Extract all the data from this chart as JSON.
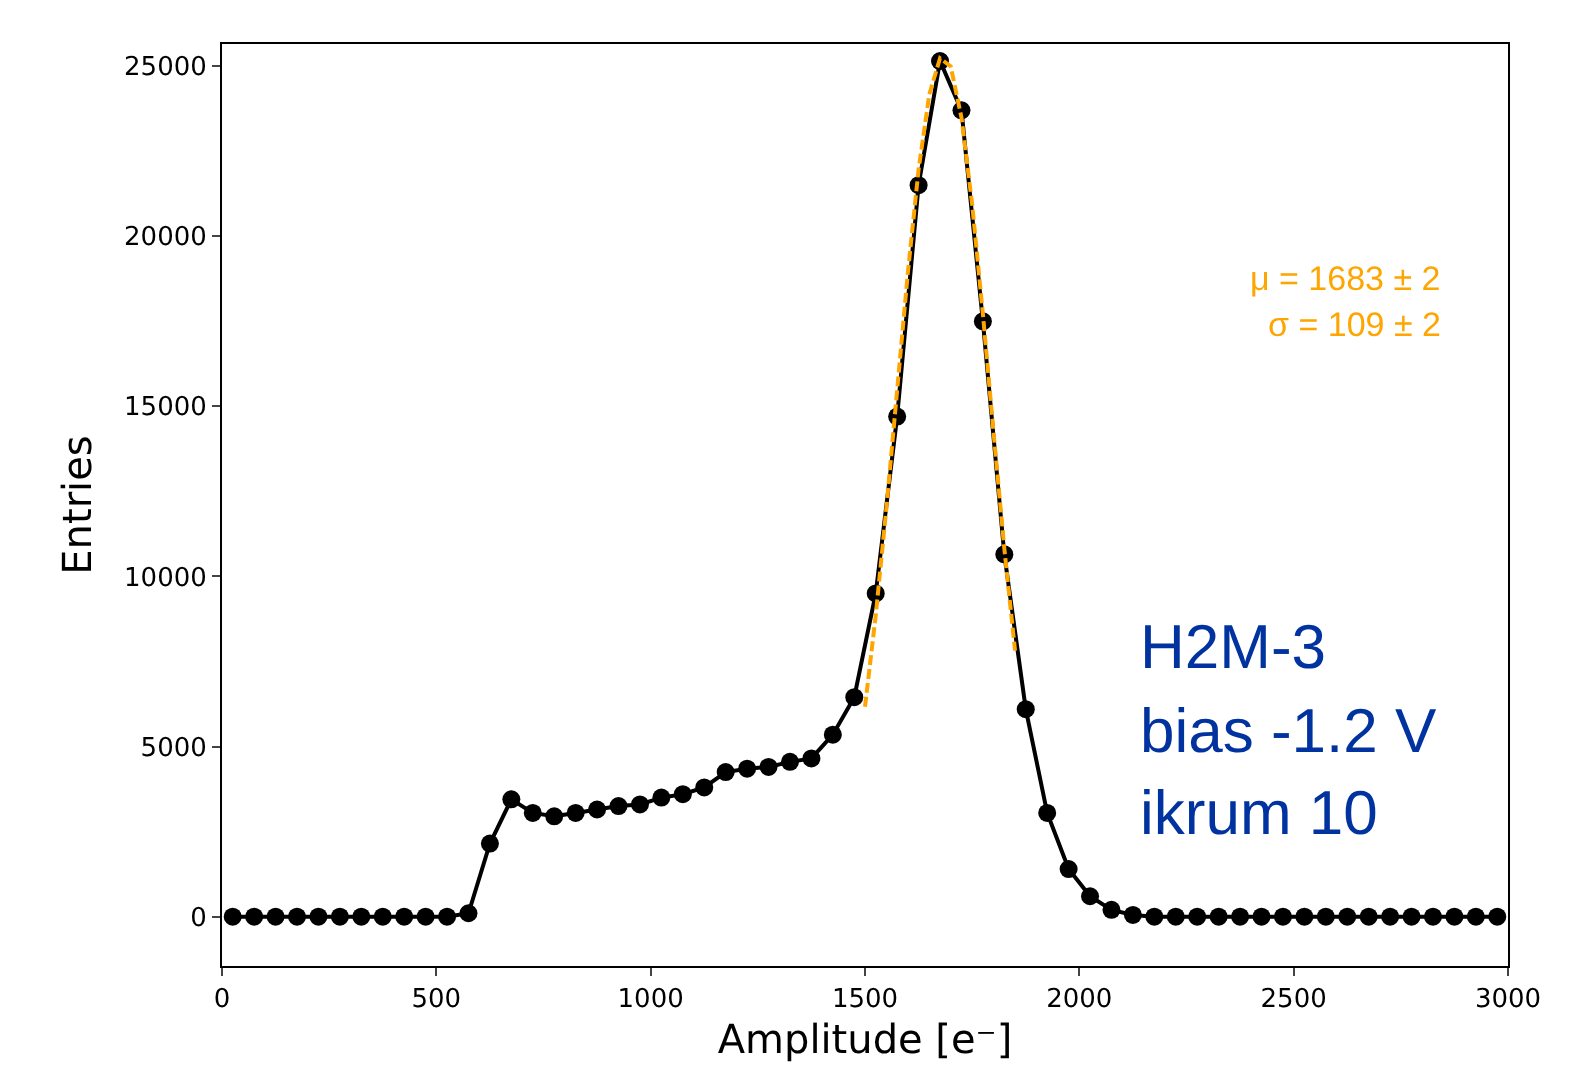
{
  "chart_data": {
    "type": "line",
    "xlabel": "Amplitude [e⁻]",
    "ylabel": "Entries",
    "xlim": [
      0,
      3000
    ],
    "xticks": [
      0,
      500,
      1000,
      1500,
      2000,
      2500,
      3000
    ],
    "ylim": [
      -1450,
      25650
    ],
    "yticks": [
      0,
      5000,
      10000,
      15000,
      20000,
      25000
    ],
    "series": [
      {
        "color": "#000000",
        "marker": "circle",
        "line_style": "solid",
        "x": [
          25,
          75,
          125,
          175,
          225,
          275,
          325,
          375,
          425,
          475,
          525,
          575,
          625,
          675,
          725,
          775,
          825,
          875,
          925,
          975,
          1025,
          1075,
          1125,
          1175,
          1225,
          1275,
          1325,
          1375,
          1425,
          1475,
          1525,
          1575,
          1625,
          1675,
          1725,
          1775,
          1825,
          1875,
          1925,
          1975,
          2025,
          2075,
          2125,
          2175,
          2225,
          2275,
          2325,
          2375,
          2425,
          2475,
          2525,
          2575,
          2625,
          2675,
          2725,
          2775,
          2825,
          2875,
          2925,
          2975
        ],
        "values": [
          0,
          0,
          0,
          0,
          0,
          0,
          0,
          0,
          0,
          0,
          0,
          100,
          2150,
          3450,
          3050,
          2950,
          3050,
          3150,
          3250,
          3300,
          3500,
          3600,
          3800,
          4250,
          4350,
          4400,
          4550,
          4650,
          5350,
          6450,
          9500,
          14700,
          21500,
          25150,
          23700,
          17500,
          10650,
          6100,
          3050,
          1400,
          600,
          200,
          50,
          0,
          0,
          0,
          0,
          0,
          0,
          0,
          0,
          0,
          0,
          0,
          0,
          0,
          0,
          0,
          0,
          0
        ]
      },
      {
        "color": "#ffa500",
        "marker": "none",
        "line_style": "dashed",
        "x": [
          1500,
          1525,
          1550,
          1575,
          1600,
          1625,
          1650,
          1675,
          1700,
          1725,
          1750,
          1775,
          1800,
          1825,
          1850
        ],
        "values": [
          6170,
          8850,
          12020,
          15480,
          18930,
          21960,
          24170,
          25230,
          24990,
          23490,
          20940,
          17720,
          14220,
          10820,
          7820
        ]
      }
    ],
    "annotations": [
      "μ = 1683 ± 2",
      "σ = 109 ± 2",
      "H2M-3",
      "bias -1.2 V",
      "ikrum 10"
    ]
  }
}
